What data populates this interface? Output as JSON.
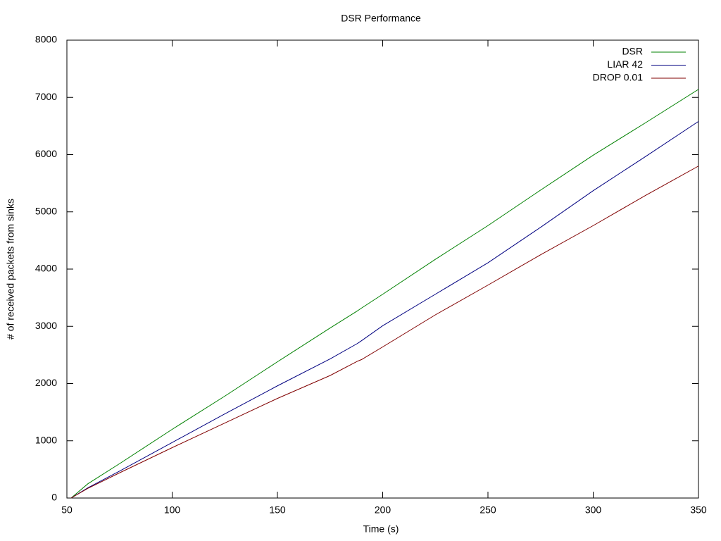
{
  "chart_data": {
    "type": "line",
    "title": "DSR Performance",
    "x_label": "Time (s)",
    "y_label": "# of received packets from sinks",
    "x": [
      52,
      60,
      75,
      100,
      125,
      150,
      175,
      188,
      190,
      200,
      225,
      250,
      275,
      300,
      325,
      350
    ],
    "series": [
      {
        "name": "DSR",
        "color": "#008000",
        "values": [
          0,
          250,
          600,
          1200,
          1780,
          2380,
          2970,
          3270,
          3320,
          3560,
          4170,
          4760,
          5380,
          5990,
          6560,
          7140
        ]
      },
      {
        "name": "LIAR 42",
        "color": "#000080",
        "values": [
          0,
          180,
          470,
          970,
          1470,
          1960,
          2430,
          2700,
          2750,
          3010,
          3560,
          4110,
          4730,
          5370,
          5970,
          6580
        ]
      },
      {
        "name": "DROP 0.01",
        "color": "#800000",
        "values": [
          0,
          170,
          440,
          880,
          1310,
          1740,
          2140,
          2390,
          2420,
          2640,
          3200,
          3720,
          4250,
          4760,
          5290,
          5800
        ]
      }
    ],
    "xlim": [
      50,
      350
    ],
    "xticks": [
      50,
      100,
      150,
      200,
      250,
      300,
      350
    ],
    "ylim": [
      0,
      8000
    ],
    "yticks": [
      0,
      1000,
      2000,
      3000,
      4000,
      5000,
      6000,
      7000,
      8000
    ],
    "grid": false,
    "legend": "top-right"
  }
}
